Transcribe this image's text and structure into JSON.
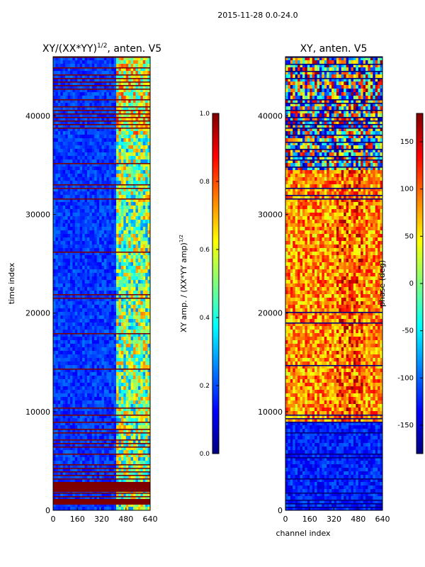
{
  "figure": {
    "suptitle": "2015-11-28 0.0-24.0"
  },
  "colors": {
    "jet": [
      "#00007f",
      "#0000ff",
      "#007fff",
      "#00ffff",
      "#7fff7f",
      "#ffff00",
      "#ff7f00",
      "#ff0000",
      "#7f0000"
    ],
    "ink": "#000000"
  },
  "chart_data": [
    {
      "type": "heatmap",
      "title_main": "XY/(XX*YY)",
      "title_sup": "1/2",
      "title_tail": ", anten. V5",
      "xlabel": "",
      "ylabel": "time index",
      "xlim": [
        0,
        640
      ],
      "ylim": [
        0,
        46000
      ],
      "xticks": [
        0,
        160,
        320,
        480,
        640
      ],
      "yticks": [
        0,
        10000,
        20000,
        30000,
        40000
      ],
      "colorbar": {
        "label_main": "XY amp. / (XX*YY amp)",
        "label_sup": "1/2",
        "range": [
          0.0,
          1.0
        ],
        "ticks": [
          "0.0",
          "0.2",
          "0.4",
          "0.6",
          "0.8",
          "1.0"
        ]
      }
    },
    {
      "type": "heatmap",
      "title_main": "XY, anten. V5",
      "title_sup": "",
      "title_tail": "",
      "xlabel": "channel index",
      "ylabel": "",
      "xlim": [
        0,
        640
      ],
      "ylim": [
        0,
        46000
      ],
      "xticks": [
        0,
        160,
        320,
        480,
        640
      ],
      "yticks": [
        0,
        10000,
        20000,
        30000,
        40000
      ],
      "colorbar": {
        "label_main": "phase (deg)",
        "label_sup": "",
        "range": [
          -180,
          180
        ],
        "ticks": [
          "-150",
          "-100",
          "-50",
          "0",
          "50",
          "100",
          "150"
        ],
        "tick_values": [
          -150,
          -100,
          -50,
          0,
          50,
          100,
          150
        ]
      }
    }
  ]
}
